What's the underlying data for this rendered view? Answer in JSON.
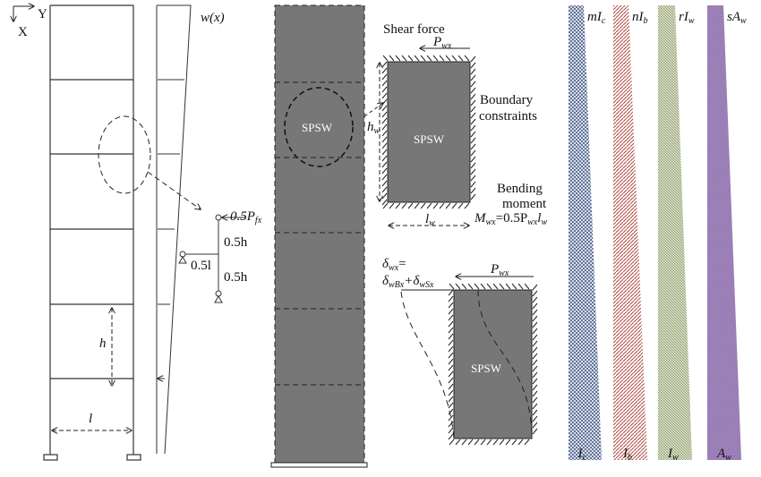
{
  "frame": {
    "axis_y": "Y",
    "axis_x": "X",
    "load_label": "w(x)",
    "story_height_label": "h",
    "bay_width_label": "l",
    "detail": {
      "force": "0.5P",
      "force_sub": "fx",
      "upper_half": "0.5h",
      "lower_half": "0.5h",
      "half_bay": "0.5l"
    }
  },
  "wall_column": {
    "panel_label": "SPSW"
  },
  "panel_top": {
    "title": "Shear force",
    "force": "P",
    "force_sub": "wx",
    "label": "SPSW",
    "height": "h",
    "height_sub": "w",
    "width": "l",
    "width_sub": "w",
    "boundary_1": "Boundary",
    "boundary_2": "constraints",
    "moment_1": "Bending",
    "moment_2": "moment",
    "moment_eq_M": "M",
    "moment_eq_Msub": "wx",
    "moment_eq_mid": "=0.5P",
    "moment_eq_Psub": "wx",
    "moment_eq_l": "l",
    "moment_eq_lsub": "w"
  },
  "panel_bottom": {
    "delta": "δ",
    "delta_sub": "wx",
    "eq": "=",
    "d1": "δ",
    "d1_sub": "wBx",
    "plus": "+δ",
    "d2_sub": "wSx",
    "force": "P",
    "force_sub": "wx",
    "label": "SPSW"
  },
  "stiffness_bars": [
    {
      "top_coef": "m",
      "sym": "I",
      "sub": "c",
      "color": "#4a5f8c"
    },
    {
      "top_coef": "n",
      "sym": "I",
      "sub": "b",
      "color": "#b0473f"
    },
    {
      "top_coef": "r",
      "sym": "I",
      "sub": "w",
      "color": "#8a9a68"
    },
    {
      "top_coef": "s",
      "sym": "A",
      "sub": "w",
      "color": "#9b7fb6"
    }
  ]
}
